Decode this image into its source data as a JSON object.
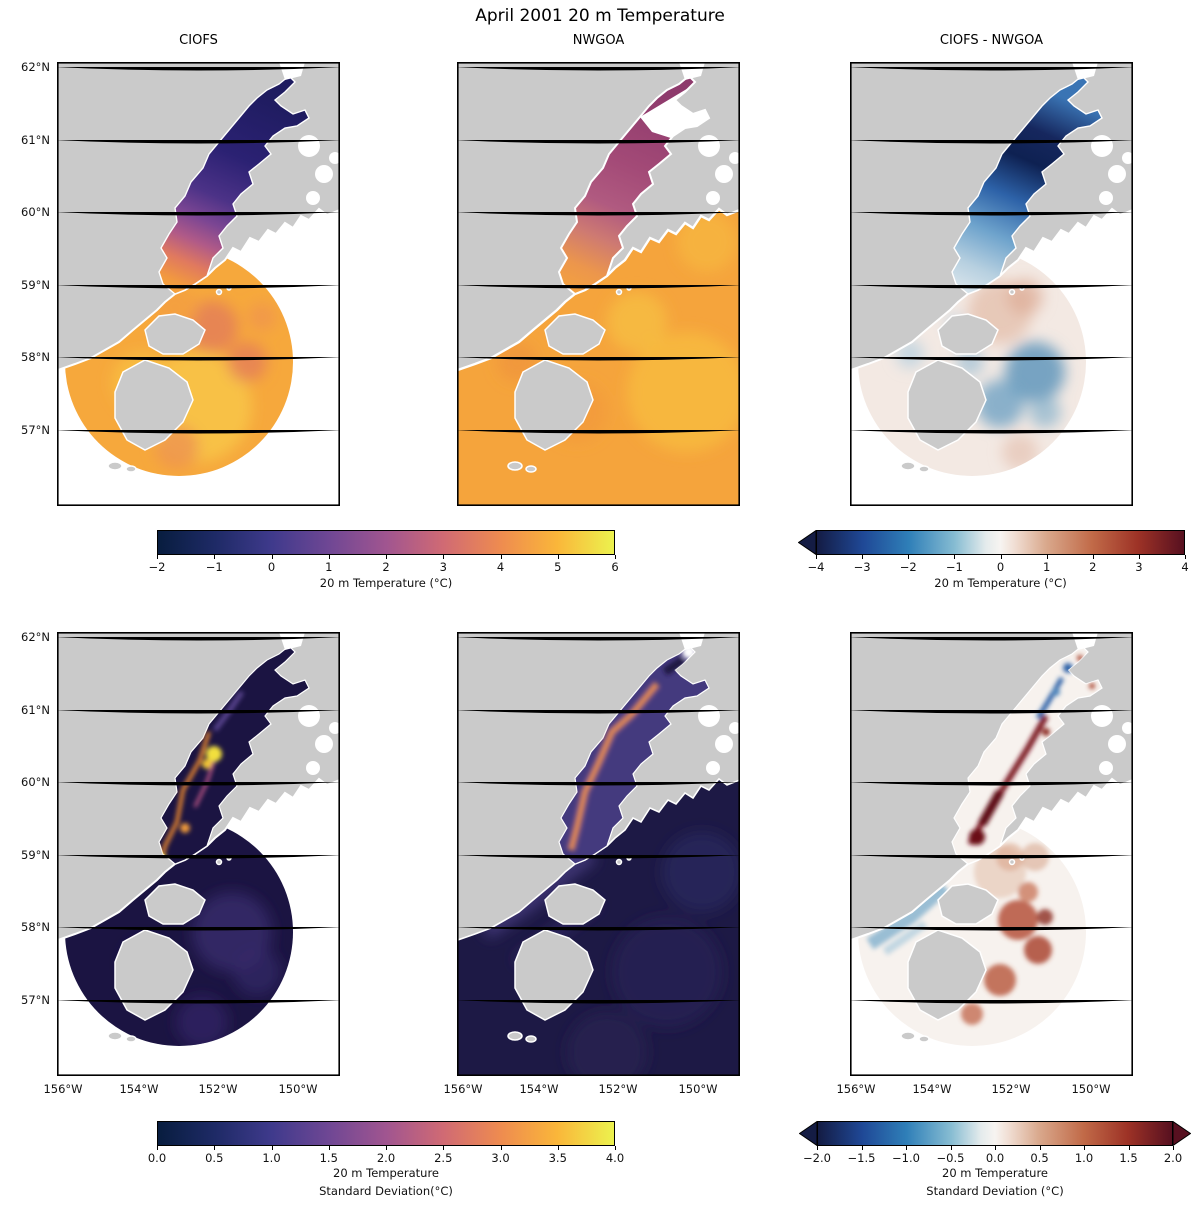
{
  "title": "April 2001 20 m Temperature",
  "panel_titles": {
    "left": "CIOFS",
    "middle": "NWGOA",
    "right": "CIOFS - NWGOA"
  },
  "axes": {
    "lat": [
      "62°N",
      "61°N",
      "60°N",
      "59°N",
      "58°N",
      "57°N"
    ],
    "lon": [
      "156°W",
      "154°W",
      "152°W",
      "150°W"
    ]
  },
  "colorbars": {
    "temp": {
      "label": "20 m Temperature (°C)",
      "ticks": [
        "−2",
        "−1",
        "0",
        "1",
        "2",
        "3",
        "4",
        "5",
        "6"
      ],
      "stops": [
        "#081d3f",
        "#1e2a66",
        "#3f3a8c",
        "#6f4794",
        "#a05590",
        "#d06a74",
        "#ee8b50",
        "#fab63a",
        "#ecf24e"
      ],
      "positions": [
        0,
        12.5,
        25,
        37.5,
        50,
        62.5,
        75,
        87.5,
        100
      ],
      "extend": "none"
    },
    "temp_diff": {
      "label": "20 m Temperature (°C)",
      "ticks": [
        "−4",
        "−3",
        "−2",
        "−1",
        "0",
        "1",
        "2",
        "3",
        "4"
      ],
      "stops": [
        "#141c44",
        "#1f4896",
        "#2f7fb8",
        "#86bcd2",
        "#e4ebec",
        "#f7f4f1",
        "#f0ddd2",
        "#d9a88c",
        "#c16a48",
        "#9d3226",
        "#571020"
      ],
      "positions": [
        0,
        12.5,
        25,
        37.5,
        46,
        50,
        54,
        62.5,
        75,
        87.5,
        100
      ],
      "extend": "min"
    },
    "sd": {
      "label_line1": "20 m Temperature",
      "label_line2": "Standard Deviation(°C)",
      "ticks": [
        "0.0",
        "0.5",
        "1.0",
        "1.5",
        "2.0",
        "2.5",
        "3.0",
        "3.5",
        "4.0"
      ],
      "stops": [
        "#081d3f",
        "#1e2a66",
        "#3f3a8c",
        "#6f4794",
        "#a05590",
        "#d06a74",
        "#ee8b50",
        "#fab63a",
        "#ecf24e"
      ],
      "positions": [
        0,
        12.5,
        25,
        37.5,
        50,
        62.5,
        75,
        87.5,
        100
      ],
      "extend": "none"
    },
    "sd_diff": {
      "label_line1": "20 m Temperature",
      "label_line2": "Standard Deviation (°C)",
      "ticks": [
        "−2.0",
        "−1.5",
        "−1.0",
        "−0.5",
        "0.0",
        "0.5",
        "1.0",
        "1.5",
        "2.0"
      ],
      "stops": [
        "#141c44",
        "#1f4896",
        "#2f7fb8",
        "#86bcd2",
        "#e4ebec",
        "#f7f4f1",
        "#f0ddd2",
        "#d9a88c",
        "#c16a48",
        "#9d3226",
        "#571020"
      ],
      "positions": [
        0,
        12.5,
        25,
        37.5,
        46,
        50,
        54,
        62.5,
        75,
        87.5,
        100
      ],
      "extend": "both"
    }
  },
  "colors": {
    "land": "#cacaca",
    "grid": "#6e6e6e",
    "frame": "#000000",
    "background": "#ffffff",
    "no_data": "#ffffff"
  },
  "chart_data": {
    "type": "heatmap",
    "subtype": "geographic map panels (Cook Inlet / Gulf of Alaska, Kodiak region)",
    "title": "April 2001 20 m Temperature",
    "layout": {
      "rows": 2,
      "cols": 3,
      "row1": "mean temperature",
      "row2": "temperature standard deviation"
    },
    "panels": [
      {
        "row": 1,
        "col": 1,
        "title": "CIOFS",
        "variable": "20 m Temperature (°C)",
        "colormap": "thermal (dark blue → purple → orange → yellow)",
        "range": [
          -2,
          6
        ],
        "pattern": "Cook Inlet very cold (≈ −2 to 0 °C, dark blue/purple); Gulf of Alaska fan-shaped model domain warm (≈ 4–5 °C, orange) with yellow patches; area outside circular domain blank"
      },
      {
        "row": 1,
        "col": 2,
        "title": "NWGOA",
        "variable": "20 m Temperature (°C)",
        "colormap": "thermal",
        "range": [
          -2,
          6
        ],
        "pattern": "Entire gulf warm (≈ 4–5 °C, orange/yellow); Cook Inlet ≈ 2 °C (magenta/purple); upper inlet forks have no data"
      },
      {
        "row": 1,
        "col": 3,
        "title": "CIOFS - NWGOA",
        "variable": "20 m Temperature difference (°C)",
        "colormap": "balance diverging (blue-white-red)",
        "range": [
          -4,
          4
        ],
        "extend": "min",
        "pattern": "Strong negative (−3 to −4 °C, dark blue) in Cook Inlet; near zero (white/faint pink) over gulf; ≈ −1 °C (steel blue) patch east/south of Kodiak"
      },
      {
        "row": 2,
        "col": 1,
        "title": "CIOFS",
        "variable": "20 m Temperature Standard Deviation (°C)",
        "colormap": "thermal",
        "range": [
          0,
          4
        ],
        "pattern": "Mostly ≈ 0–0.5 °C (very dark navy); bright yellow/orange streaks up to ≈ 3–4 °C along mid Cook Inlet channel"
      },
      {
        "row": 2,
        "col": 2,
        "title": "NWGOA",
        "variable": "20 m Temperature Standard Deviation (°C)",
        "colormap": "thermal",
        "range": [
          0,
          4
        ],
        "pattern": "Ocean-wide ≈ 0–0.5 °C (dark navy) with purple filaments; orange/pink core ≈ 1.5–2 °C along inlet axis"
      },
      {
        "row": 2,
        "col": 3,
        "title": "CIOFS - NWGOA",
        "variable": "Std. deviation difference (°C)",
        "colormap": "balance diverging",
        "range": [
          -2,
          2
        ],
        "extend": "both",
        "pattern": "Dark red streaks (≈ +2 °C) along mid-inlet, blue streaks in upper inlet, light blue band along Alaska Peninsula coast, red eddies east of Kodiak"
      }
    ],
    "x_axis": {
      "ticks": [
        "156°W",
        "154°W",
        "152°W",
        "150°W"
      ],
      "shown_on": "bottom row only"
    },
    "y_axis": {
      "ticks": [
        "62°N",
        "61°N",
        "60°N",
        "59°N",
        "58°N",
        "57°N"
      ],
      "shown_on": "left column only"
    },
    "colorbars": [
      {
        "applies_to": "row 1 left+middle",
        "label": "20 m Temperature (°C)",
        "range": [
          -2,
          6
        ],
        "tick_step": 1
      },
      {
        "applies_to": "row 1 right",
        "label": "20 m Temperature (°C)",
        "range": [
          -4,
          4
        ],
        "tick_step": 1,
        "extend": "min"
      },
      {
        "applies_to": "row 2 left+middle",
        "label": "20 m Temperature Standard Deviation(°C)",
        "range": [
          0,
          4
        ],
        "tick_step": 0.5
      },
      {
        "applies_to": "row 2 right",
        "label": "20 m Temperature Standard Deviation (°C)",
        "range": [
          -2,
          2
        ],
        "tick_step": 0.5,
        "extend": "both"
      }
    ],
    "grid": true,
    "land_color": "#cacaca"
  }
}
